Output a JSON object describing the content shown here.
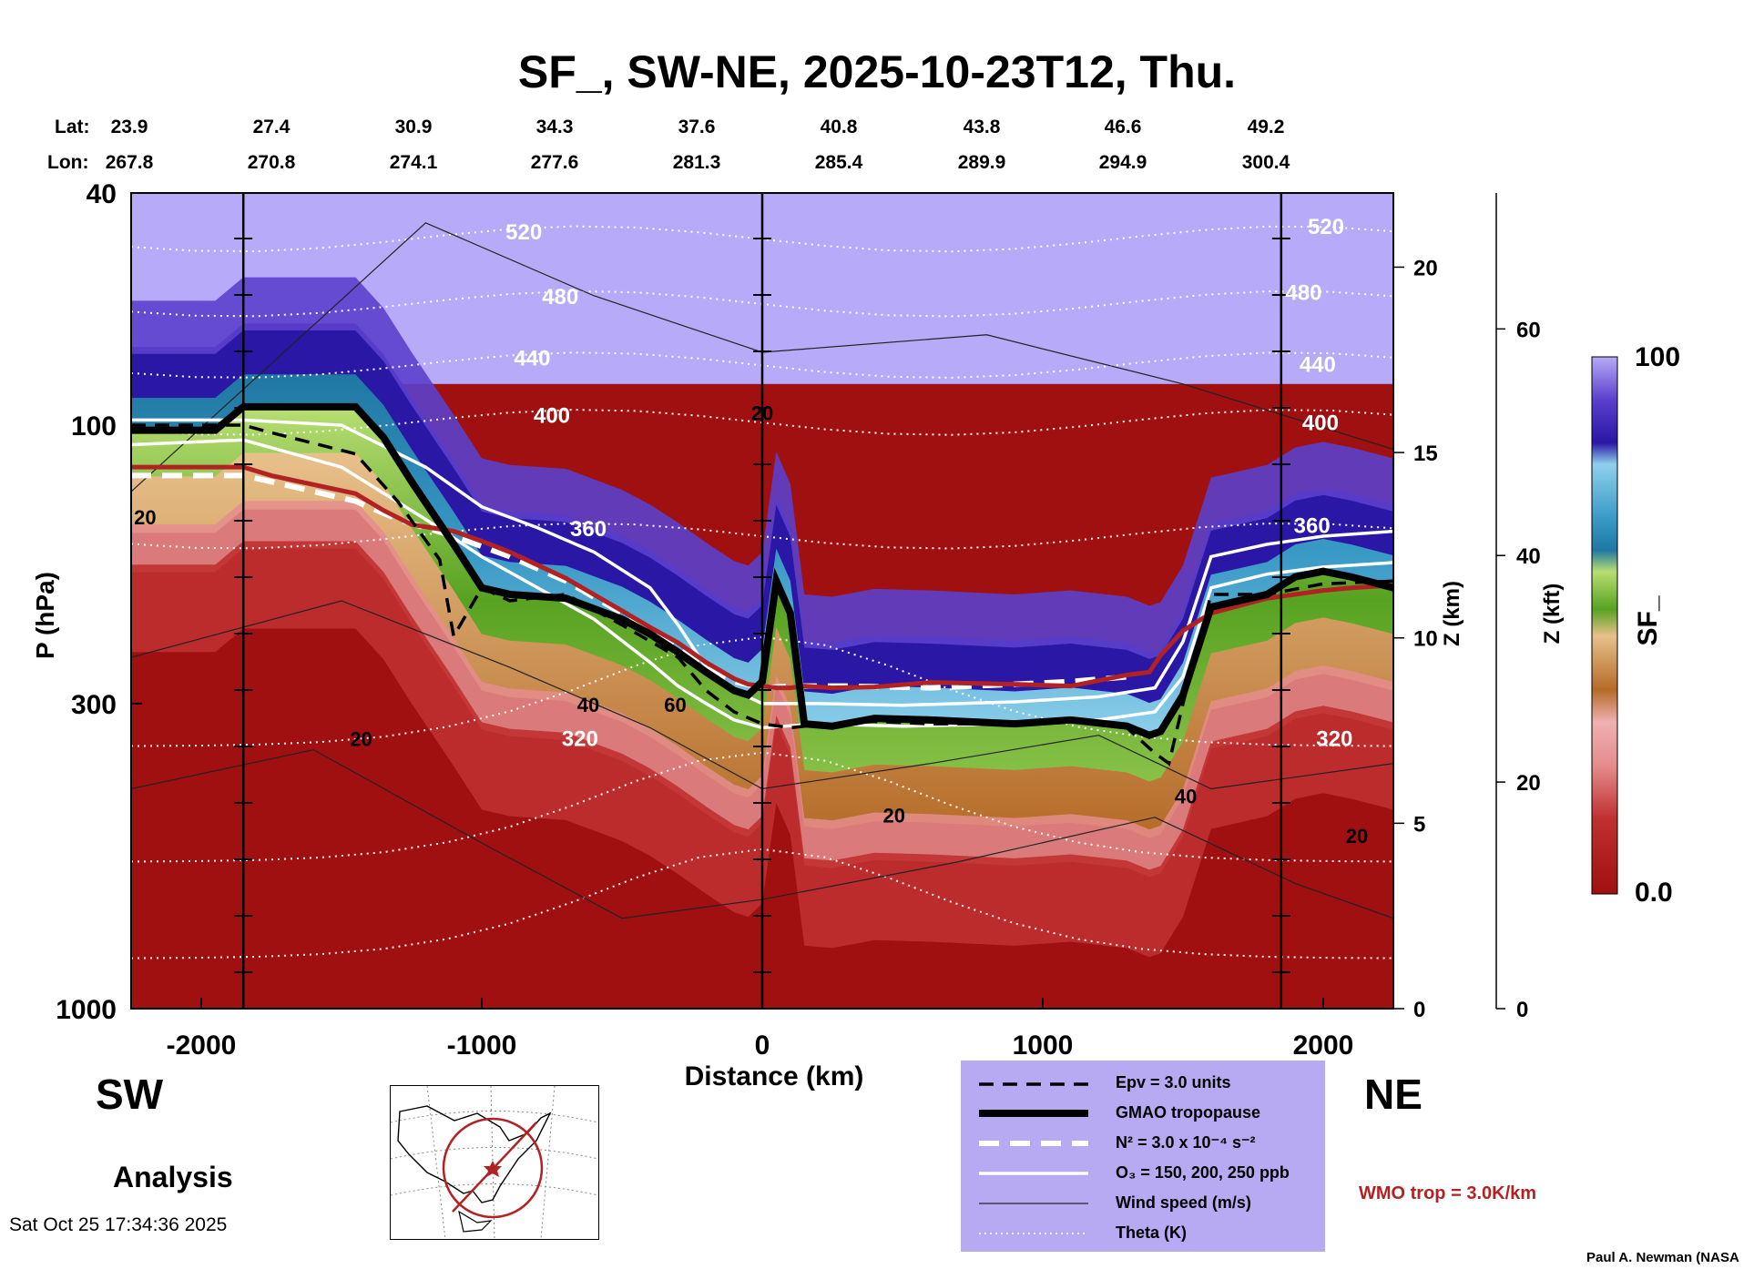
{
  "title": "SF_, SW-NE, 2025-10-23T12, Thu.",
  "left_label": "SW",
  "right_label": "NE",
  "analysis_label": "Analysis",
  "timestamp": "Sat Oct 25 17:34:36 2025",
  "credit": "Paul A. Newman (NASA",
  "wmo_note": "WMO trop = 3.0K/km",
  "colorbar": {
    "label": "SF_",
    "max": "100",
    "min": "0.0"
  },
  "legend": [
    {
      "label": "Epv = 3.0 units",
      "style": "dashed-black"
    },
    {
      "label": "GMAO tropopause",
      "style": "thick-black"
    },
    {
      "label": "N² = 3.0 x 10⁻⁴ s⁻²",
      "style": "dashed-white"
    },
    {
      "label": "O₃ = 150, 200, 250 ppb",
      "style": "solid-white"
    },
    {
      "label": "Wind speed (m/s)",
      "style": "thin-black"
    },
    {
      "label": "Theta (K)",
      "style": "dotted-white"
    }
  ],
  "chart_data": {
    "type": "heatmap",
    "title": "SF_, SW-NE, 2025-10-23T12, Thu.",
    "xlabel": "Distance (km)",
    "ylabel": "P (hPa)",
    "ylabel_right": "Z (km)",
    "ylabel_right2": "Z (kft)",
    "xlim": [
      -2250,
      2250
    ],
    "ylim_hpa": [
      1000,
      40
    ],
    "y_scale": "log",
    "x_ticks": [
      "-2000",
      "-1000",
      "0",
      "1000",
      "2000"
    ],
    "x_tick_values": [
      -2000,
      -1000,
      0,
      1000,
      2000
    ],
    "y_ticks": [
      "40",
      "100",
      "300",
      "1000"
    ],
    "y_tick_values": [
      40,
      100,
      300,
      1000
    ],
    "z_km_ticks": [
      "0",
      "5",
      "10",
      "15",
      "20"
    ],
    "z_km_values": [
      0,
      5,
      10,
      15,
      20
    ],
    "z_kft_ticks": [
      "0",
      "20",
      "40",
      "60"
    ],
    "z_kft_values": [
      0,
      20,
      40,
      60
    ],
    "lat_label": "Lat:",
    "lon_label": "Lon:",
    "lat": [
      "23.9",
      "27.4",
      "30.9",
      "34.3",
      "37.6",
      "40.8",
      "43.8",
      "46.6",
      "49.2"
    ],
    "lon": [
      "267.8",
      "270.8",
      "274.1",
      "277.6",
      "281.3",
      "285.4",
      "289.9",
      "294.9",
      "300.4"
    ],
    "vertical_markers_km": [
      -1850,
      0,
      1850
    ],
    "colorbar_range": [
      0,
      100
    ],
    "colors": [
      "#a01010",
      "#c03030",
      "#e58d8d",
      "#b56b28",
      "#e7c08a",
      "#58a222",
      "#b7de72",
      "#1f78a3",
      "#8fd0ec",
      "#2a17a6",
      "#5b40cc",
      "#b7aaf8"
    ],
    "theta_labels": [
      {
        "value": "520",
        "x": -850,
        "p": 48
      },
      {
        "value": "480",
        "x": -720,
        "p": 62
      },
      {
        "value": "440",
        "x": -820,
        "p": 79
      },
      {
        "value": "400",
        "x": -750,
        "p": 99
      },
      {
        "value": "360",
        "x": -620,
        "p": 155
      },
      {
        "value": "320",
        "x": -650,
        "p": 355
      },
      {
        "value": "520",
        "x": 2010,
        "p": 47
      },
      {
        "value": "480",
        "x": 1930,
        "p": 61
      },
      {
        "value": "440",
        "x": 1980,
        "p": 81
      },
      {
        "value": "400",
        "x": 1990,
        "p": 102
      },
      {
        "value": "360",
        "x": 1960,
        "p": 153
      },
      {
        "value": "320",
        "x": 2040,
        "p": 355
      }
    ],
    "wind_labels": [
      {
        "value": "20",
        "x": -2200,
        "p": 148
      },
      {
        "value": "20",
        "x": -1430,
        "p": 355
      },
      {
        "value": "40",
        "x": -620,
        "p": 310
      },
      {
        "value": "60",
        "x": -310,
        "p": 310
      },
      {
        "value": "20",
        "x": 0,
        "p": 98
      },
      {
        "value": "20",
        "x": 470,
        "p": 480
      },
      {
        "value": "40",
        "x": 1510,
        "p": 445
      },
      {
        "value": "20",
        "x": 2120,
        "p": 520
      }
    ],
    "series": [
      {
        "name": "GMAO tropopause",
        "x": [
          -2250,
          -1950,
          -1850,
          -1750,
          -1450,
          -1350,
          -1250,
          -1100,
          -1000,
          -900,
          -700,
          -500,
          -400,
          -300,
          -200,
          -100,
          -50,
          0,
          50,
          100,
          150,
          250,
          400,
          600,
          900,
          1100,
          1300,
          1380,
          1420,
          1500,
          1600,
          1800,
          1900,
          2000,
          2100,
          2250
        ],
        "p": [
          102,
          102,
          93,
          93,
          93,
          105,
          125,
          160,
          190,
          195,
          198,
          215,
          228,
          245,
          265,
          285,
          290,
          275,
          185,
          210,
          325,
          328,
          318,
          320,
          325,
          320,
          328,
          340,
          335,
          290,
          205,
          195,
          182,
          178,
          182,
          190
        ]
      },
      {
        "name": "WMO trop",
        "p": [
          118,
          118,
          118,
          122,
          131,
          140,
          148,
          152,
          158,
          165,
          183,
          208,
          222,
          236,
          255,
          272,
          278,
          280,
          282,
          282,
          280,
          282,
          281,
          276,
          278,
          280,
          268,
          265,
          248,
          225,
          210,
          198,
          195,
          192,
          190,
          188
        ],
        "x": [
          -2250,
          -1950,
          -1850,
          -1750,
          -1450,
          -1350,
          -1250,
          -1100,
          -1000,
          -900,
          -700,
          -500,
          -400,
          -300,
          -200,
          -100,
          -50,
          0,
          50,
          100,
          150,
          250,
          400,
          600,
          900,
          1100,
          1300,
          1380,
          1420,
          1500,
          1600,
          1800,
          1900,
          2000,
          2100,
          2250
        ]
      },
      {
        "name": "Epv = 3.0 units",
        "x": [
          -2250,
          -1950,
          -1850,
          -1750,
          -1450,
          -1300,
          -1150,
          -1100,
          -1000,
          -900,
          -700,
          -500,
          -300,
          -200,
          -100,
          0,
          100,
          200,
          400,
          600,
          900,
          1100,
          1300,
          1400,
          1450,
          1500,
          1600,
          1800,
          2000,
          2250
        ],
        "p": [
          100,
          100,
          100,
          103,
          112,
          135,
          170,
          230,
          190,
          200,
          195,
          220,
          250,
          285,
          310,
          325,
          330,
          326,
          322,
          325,
          325,
          322,
          330,
          365,
          380,
          300,
          195,
          195,
          187,
          185
        ]
      },
      {
        "name": "N² = 3.0 x 10⁻⁴ s⁻²",
        "x": [
          -2250,
          -1950,
          -1850,
          -1750,
          -1450,
          -1300,
          -1100,
          -900,
          -700,
          -500,
          -300,
          -200,
          -100,
          0,
          100,
          300,
          600,
          900,
          1100,
          1300
        ],
        "p": [
          122,
          122,
          122,
          125,
          135,
          145,
          155,
          168,
          185,
          210,
          240,
          260,
          275,
          282,
          280,
          280,
          282,
          278,
          275,
          270
        ]
      },
      {
        "name": "O₃ = 150 ppb",
        "x": [
          -2250,
          -1850,
          -1500,
          -1200,
          -1000,
          -800,
          -600,
          -400,
          -300,
          -200,
          -100,
          0,
          200,
          500,
          900,
          1200,
          1400,
          1500,
          1600,
          1800,
          2000,
          2250
        ],
        "p": [
          108,
          106,
          118,
          145,
          168,
          190,
          215,
          255,
          280,
          300,
          320,
          330,
          325,
          328,
          325,
          320,
          310,
          270,
          190,
          180,
          175,
          172
        ]
      },
      {
        "name": "O₃ = 250 ppb",
        "x": [
          -2250,
          -1850,
          -1500,
          -1200,
          -1000,
          -800,
          -600,
          -400,
          -300,
          -200,
          -100,
          0,
          200,
          500,
          900,
          1200,
          1400,
          1500,
          1600,
          1800,
          2000,
          2250
        ],
        "p": [
          98,
          98,
          100,
          118,
          138,
          150,
          165,
          190,
          220,
          260,
          285,
          300,
          300,
          302,
          298,
          292,
          282,
          235,
          168,
          160,
          155,
          152
        ]
      }
    ]
  }
}
